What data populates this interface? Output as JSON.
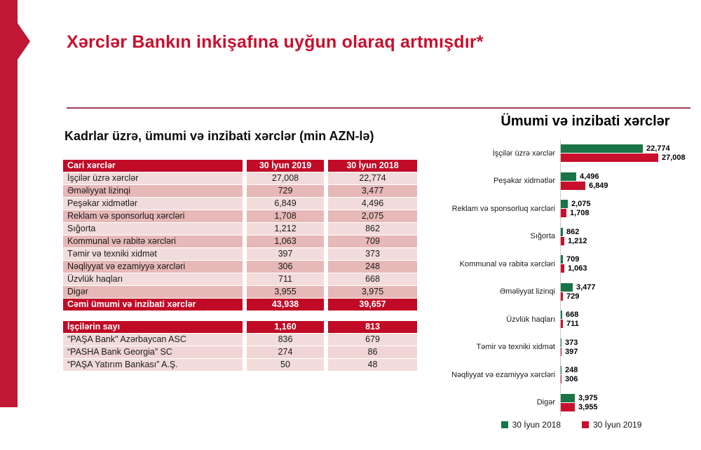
{
  "slide_title": "Xərclər Bankın inkişafına uyğun olaraq artmışdır*",
  "colors": {
    "brand_red": "#C8102E",
    "accent_bar_red": "#C01734",
    "table_header_red": "#C00A26",
    "row_light_pink": "#F2DCDB",
    "row_dark_pink": "#E6B8B7",
    "green_2018": "#1A7448",
    "red_2019": "#C8102E",
    "divider_line": "#A23B55",
    "axis_gray": "#C9C9C9"
  },
  "left_section": {
    "heading": "Kadrlar üzrə, ümumi və inzibati xərclər (min AZN-lə)",
    "expenses_table": {
      "header": {
        "label": "Cari xərclər",
        "y2019": "30 İyun 2019",
        "y2018": "30 İyun 2018"
      },
      "rows": [
        {
          "label": "İşçilər üzrə xərclər",
          "y2019": "27,008",
          "y2018": "22,774"
        },
        {
          "label": "Əməliyyat lizinqi",
          "y2019": "729",
          "y2018": "3,477"
        },
        {
          "label": "Peşəkar xidmətlər",
          "y2019": "6,849",
          "y2018": "4,496"
        },
        {
          "label": "Reklam və sponsorluq xərcləri",
          "y2019": "1,708",
          "y2018": "2,075"
        },
        {
          "label": "Sığorta",
          "y2019": "1,212",
          "y2018": "862"
        },
        {
          "label": "Kommunal və rabitə xərcləri",
          "y2019": "1,063",
          "y2018": "709"
        },
        {
          "label": "Təmir və texniki xidmət",
          "y2019": "397",
          "y2018": "373"
        },
        {
          "label": "Nəqliyyat və ezamiyyə xərcləri",
          "y2019": "306",
          "y2018": "248"
        },
        {
          "label": "Üzvlük haqları",
          "y2019": "711",
          "y2018": "668"
        },
        {
          "label": "Digər",
          "y2019": "3,955",
          "y2018": "3,975"
        }
      ],
      "total_row": {
        "label": "Cəmi ümumi və inzibati xərclər",
        "y2019": "43,938",
        "y2018": "39,657"
      }
    },
    "headcount_table": {
      "header": {
        "label": "İşçilərin sayı",
        "y2019": "1,160",
        "y2018": "813"
      },
      "rows": [
        {
          "label": "\"PAŞA Bank\" Azərbaycan  ASC",
          "y2019": "836",
          "y2018": "679"
        },
        {
          "label": "“PASHA Bank Georgia” SC",
          "y2019": "274",
          "y2018": "86"
        },
        {
          "label": "“PAŞA Yatırım Bankası” A.Ş.",
          "y2019": "50",
          "y2018": "48"
        }
      ]
    }
  },
  "chart_data": {
    "type": "bar",
    "orientation": "horizontal",
    "title": "Ümumi və inzibati xərclər",
    "categories": [
      "İşçilər üzrə xərclər",
      "Peşəkar xidmətlər",
      "Reklam və sponsorluq xərcləri",
      "Sığorta",
      "Kommunal və rabitə xərcləri",
      "Əməliyyat lizinqi",
      "Üzvlük haqları",
      "Təmir və texniki xidmət",
      "Nəqliyyat və ezamiyyə xərcləri",
      "Digər"
    ],
    "series": [
      {
        "name": "30 İyun 2018",
        "color": "#1A7448",
        "values": [
          22774,
          4496,
          2075,
          862,
          709,
          3477,
          668,
          373,
          248,
          3975
        ]
      },
      {
        "name": "30 İyun 2019",
        "color": "#C8102E",
        "values": [
          27008,
          6849,
          1708,
          1212,
          1063,
          729,
          711,
          397,
          306,
          3955
        ]
      }
    ],
    "xlim": [
      0,
      27008
    ],
    "grid": false,
    "legend_position": "bottom",
    "value_labels": true
  }
}
